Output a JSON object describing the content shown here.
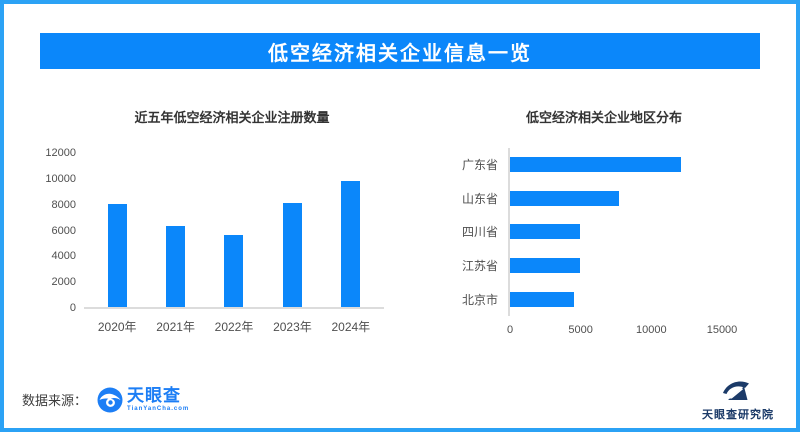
{
  "banner": {
    "title": "低空经济相关企业信息一览"
  },
  "colors": {
    "accent_blue": "#0B87FA",
    "frame_blue": "#2BA2F5",
    "logo_blue": "#1C7EF5",
    "navy": "#1B3A68",
    "axis_line": "#DCDCDC",
    "axis_text": "#4F4F4F"
  },
  "chart_data": [
    {
      "type": "bar",
      "orientation": "vertical",
      "title": "近五年低空经济相关企业注册数量",
      "categories": [
        "2020年",
        "2021年",
        "2022年",
        "2023年",
        "2024年"
      ],
      "values": [
        7950,
        6300,
        5550,
        8050,
        9750
      ],
      "xlabel": "",
      "ylabel": "",
      "ylim": [
        0,
        12000
      ],
      "yticks": [
        0,
        2000,
        4000,
        6000,
        8000,
        10000,
        12000
      ],
      "grid": false,
      "legend": false,
      "bar_color": "#0B87FA"
    },
    {
      "type": "bar",
      "orientation": "horizontal",
      "title": "低空经济相关企业地区分布",
      "categories": [
        "广东省",
        "山东省",
        "四川省",
        "江苏省",
        "北京市"
      ],
      "values": [
        12200,
        7750,
        5000,
        5000,
        4600
      ],
      "xlabel": "",
      "ylabel": "",
      "xlim": [
        0,
        15000
      ],
      "xticks": [
        0,
        5000,
        10000,
        15000
      ],
      "grid": false,
      "legend": false,
      "bar_color": "#0B87FA"
    }
  ],
  "footer": {
    "source_label": "数据来源：",
    "tianyancha": {
      "name": "天眼查",
      "domain": "TianYanCha.com"
    },
    "institute_label": "天眼查研究院"
  }
}
